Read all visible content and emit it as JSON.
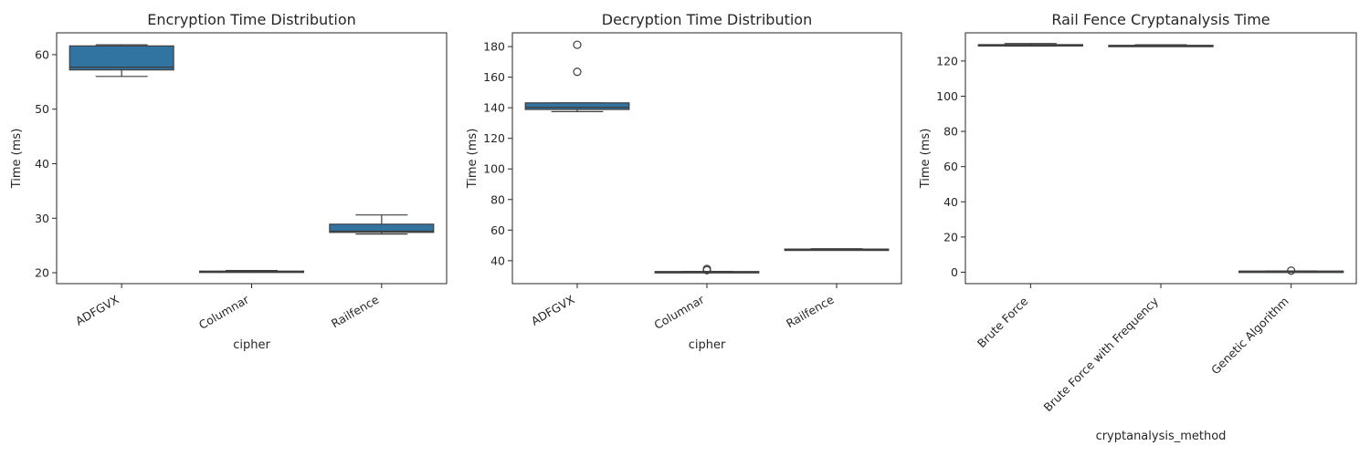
{
  "chart_data": [
    {
      "type": "box",
      "title": "Encryption Time Distribution",
      "xlabel": "cipher",
      "ylabel": "Time (ms)",
      "ylim": [
        18,
        64
      ],
      "yticks": [
        20,
        30,
        40,
        50,
        60
      ],
      "box_color": "#3274a1",
      "categories": [
        "ADFGVX",
        "Columnar",
        "Railfence"
      ],
      "boxes": [
        {
          "min": 56.0,
          "q1": 57.2,
          "median": 57.7,
          "q3": 61.6,
          "max": 61.8,
          "outliers": []
        },
        {
          "min": 20.1,
          "q1": 20.1,
          "median": 20.2,
          "q3": 20.3,
          "max": 20.4,
          "outliers": []
        },
        {
          "min": 27.1,
          "q1": 27.4,
          "median": 27.6,
          "q3": 28.9,
          "max": 30.6,
          "outliers": []
        }
      ]
    },
    {
      "type": "box",
      "title": "Decryption Time Distribution",
      "xlabel": "cipher",
      "ylabel": "Time (ms)",
      "ylim": [
        25,
        189
      ],
      "yticks": [
        40,
        60,
        80,
        100,
        120,
        140,
        160,
        180
      ],
      "box_color": "#3274a1",
      "categories": [
        "ADFGVX",
        "Columnar",
        "Railfence"
      ],
      "boxes": [
        {
          "min": 137.5,
          "q1": 138.9,
          "median": 140.3,
          "q3": 143.2,
          "max": 143.2,
          "outliers": [
            163.5,
            181.2
          ]
        },
        {
          "min": 32.5,
          "q1": 32.6,
          "median": 32.7,
          "q3": 32.9,
          "max": 33.0,
          "outliers": [
            33.8,
            34.6
          ]
        },
        {
          "min": 46.8,
          "q1": 46.9,
          "median": 47.2,
          "q3": 47.6,
          "max": 47.8,
          "outliers": []
        }
      ]
    },
    {
      "type": "box",
      "title": "Rail Fence Cryptanalysis Time",
      "xlabel": "cryptanalysis_method",
      "ylabel": "Time (ms)",
      "ylim": [
        -6.5,
        136
      ],
      "yticks": [
        0,
        20,
        40,
        60,
        80,
        100,
        120
      ],
      "box_color": "#3274a1",
      "categories": [
        "Brute Force",
        "Brute Force with Frequency",
        "Genetic Algorithm"
      ],
      "boxes": [
        {
          "min": 128.5,
          "q1": 128.7,
          "median": 129.0,
          "q3": 129.3,
          "max": 129.9,
          "outliers": []
        },
        {
          "min": 128.3,
          "q1": 128.5,
          "median": 128.7,
          "q3": 128.9,
          "max": 129.2,
          "outliers": []
        },
        {
          "min": 0.3,
          "q1": 0.4,
          "median": 0.5,
          "q3": 0.6,
          "max": 0.7,
          "outliers": [
            0.9
          ]
        }
      ]
    }
  ]
}
